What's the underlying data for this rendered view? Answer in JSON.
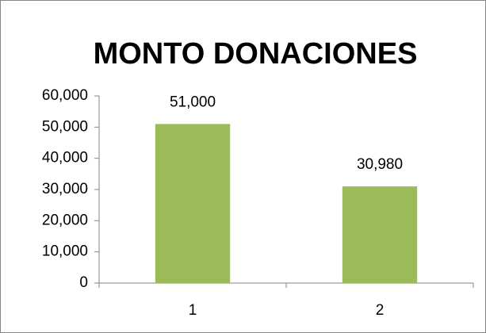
{
  "chart_data": {
    "type": "bar",
    "title": "MONTO DONACIONES",
    "categories": [
      "1",
      "2"
    ],
    "values": [
      51000,
      30980
    ],
    "value_labels": [
      "51,000",
      "30,980"
    ],
    "color": "#9bbb59",
    "ylim": [
      0,
      60000
    ],
    "yticks": [
      0,
      {
        "value": 10000,
        "label": "10,000"
      },
      {
        "value": 20000,
        "label": "20,000"
      },
      {
        "value": 30000,
        "label": "30,000"
      },
      {
        "value": 40000,
        "label": "40,000"
      },
      {
        "value": 50000,
        "label": "50,000"
      },
      {
        "value": 60000,
        "label": "60,000"
      }
    ],
    "grid": false
  }
}
